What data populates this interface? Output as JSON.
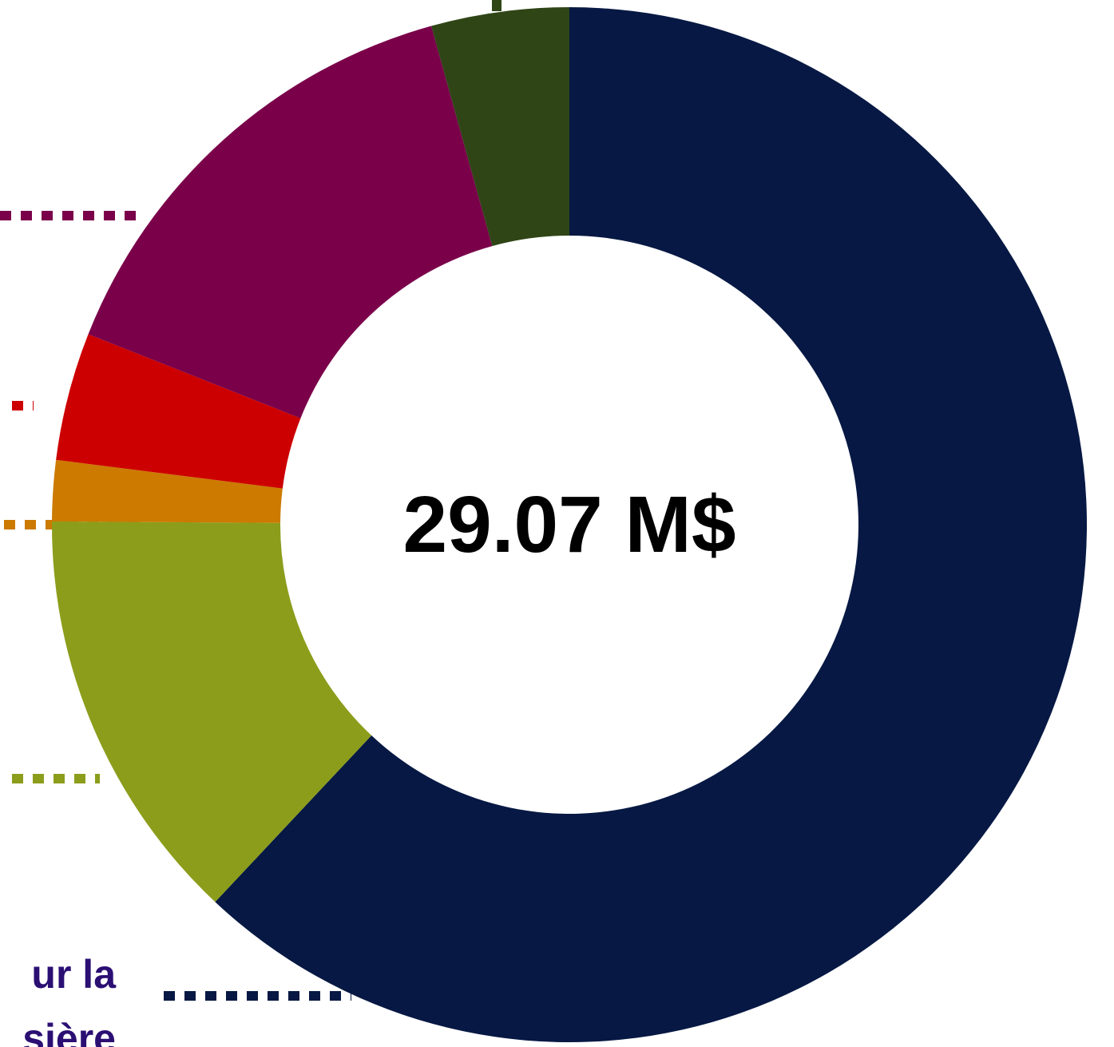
{
  "chart_data": {
    "type": "donut",
    "center_label": "29.07 M$",
    "values": [
      62.0,
      13.1,
      1.9,
      4.0,
      14.7,
      4.3
    ],
    "colors": [
      "#061843",
      "#8c9d1b",
      "#cc7a00",
      "#cc0000",
      "#7a004a",
      "#2f4516"
    ],
    "label_lines": [
      "ur la",
      "sière"
    ]
  }
}
